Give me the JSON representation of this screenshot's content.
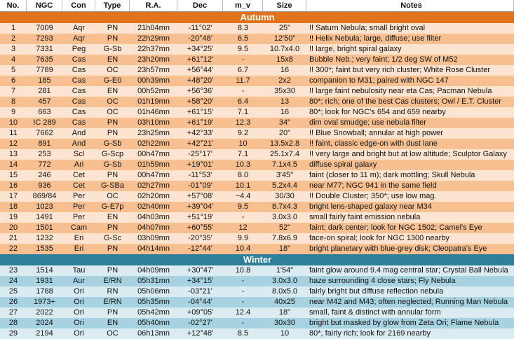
{
  "columns": [
    "No.",
    "NGC",
    "Con",
    "Type",
    "R.A.",
    "Dec",
    "m_v",
    "Size",
    "Notes"
  ],
  "colors": {
    "autumn_band": "#e2731a",
    "autumn_row_light": "#fce4d0",
    "autumn_row_dark": "#f8c090",
    "winter_band": "#2f7e9a",
    "winter_row_light": "#dbebf2",
    "winter_row_dark": "#a6d2e1"
  },
  "sections": [
    {
      "name": "Autumn",
      "rows": [
        [
          "1",
          "7009",
          "Aqr",
          "PN",
          "21h04mn",
          "-11°02'",
          "8.3",
          "25\"",
          "!! Saturn Nebula; small bright oval"
        ],
        [
          "2",
          "7293",
          "Aqr",
          "PN",
          "22h29mn",
          "-20°48'",
          "6.5",
          "12'50\"",
          "!! Helix Nebula; large, diffuse; use filter"
        ],
        [
          "3",
          "7331",
          "Peg",
          "G-Sb",
          "22h37mn",
          "+34°25'",
          "9.5",
          "10.7x4.0",
          "!! large, bright spiral galaxy"
        ],
        [
          "4",
          "7635",
          "Cas",
          "EN",
          "23h20mn",
          "+61°12'",
          "-",
          "15x8",
          "Bubble Neb.; very faint; 1/2 deg SW of M52"
        ],
        [
          "5",
          "7789",
          "Cas",
          "OC",
          "23h57mn",
          "+56°44'",
          "6.7",
          "16",
          "!! 300*; faint but very rich cluster; White Rose Cluster"
        ],
        [
          "6",
          "185",
          "Cas",
          "G-E0",
          "00h39mn",
          "+48°20'",
          "11.7",
          "2x2",
          "companion to  M31;  paired with NGC 147"
        ],
        [
          "7",
          "281",
          "Cas",
          "EN",
          "00h52mn",
          "+56°36'",
          "-",
          "35x30",
          "!! large faint nebulosity near eta Cas; Pacman Nebula"
        ],
        [
          "8",
          "457",
          "Cas",
          "OC",
          "01h19mn",
          "+58°20'",
          "6.4",
          "13",
          "80*; rich; one of the best Cas clusters; Owl / E.T. Cluster"
        ],
        [
          "9",
          "663",
          "Cas",
          "OC",
          "01h46mn",
          "+61°15'",
          "7.1",
          "16",
          "80*; look for NGC's 654 and 659 nearby"
        ],
        [
          "10",
          "IC 289",
          "Cas",
          "PN",
          "03h10mn",
          "+61°19'",
          "12.3",
          "34\"",
          "dim oval smudge; use nebula filter"
        ],
        [
          "11",
          "7662",
          "And",
          "PN",
          "23h25mn",
          "+42°33'",
          "9.2",
          "20\"",
          "!! Blue Snowball; annular at high power"
        ],
        [
          "12",
          "891",
          "And",
          "G-Sb",
          "02h22mn",
          "+42°21'",
          "10",
          "13.5x2.8",
          "!! faint, classic edge-on with dust lane"
        ],
        [
          "13",
          "253",
          "Scl",
          "G-Scp",
          "00h47mn",
          "-25°17'",
          "7.1",
          "25.1x7.4",
          "!! very large and bright but at low altitude; Sculptor Galaxy"
        ],
        [
          "14",
          "772",
          "Ari",
          "G-Sb",
          "01h59mn",
          "+19°01'",
          "10.3",
          "7.1x4.5",
          "diffuse spiral galaxy"
        ],
        [
          "15",
          "246",
          "Cet",
          "PN",
          "00h47mn",
          "-11°53'",
          "8.0",
          "3'45\"",
          "faint (closer to 11 m); dark mottling; Skull Nebula"
        ],
        [
          "16",
          "936",
          "Cet",
          "G-SBa",
          "02h27mn",
          "-01°09'",
          "10.1",
          "5.2x4.4",
          "near M77; NGC 941 in the same field"
        ],
        [
          "17",
          "869/84",
          "Per",
          "OC",
          "02h20mn",
          "+57°08'",
          "~4.4",
          "30/30",
          "!! Double Cluster; 350*; use low mag."
        ],
        [
          "18",
          "1023",
          "Per",
          "G-E7p",
          "02h40mn",
          "+39°04'",
          "9.5",
          "8.7x4.3",
          "bright lens-shaped galaxy near M34"
        ],
        [
          "19",
          "1491",
          "Per",
          "EN",
          "04h03mn",
          "+51°19'",
          "-",
          "3.0x3.0",
          "small fairly faint emission nebula"
        ],
        [
          "20",
          "1501",
          "Cam",
          "PN",
          "04h07mn",
          "+60°55'",
          "12",
          "52\"",
          "faint; dark center; look for NGC 1502; Camel's Eye"
        ],
        [
          "21",
          "1232",
          "Eri",
          "G-Sc",
          "03h09mn",
          "-20°35'",
          "9.9",
          "7.8x6.9",
          "face-on spiral; look for NGC 1300 nearby"
        ],
        [
          "22",
          "1535",
          "Eri",
          "PN",
          "04h14mn",
          "-12°44'",
          "10.4",
          "18\"",
          "bright planetary with blue-grey disk; Cleopatra's Eye"
        ]
      ]
    },
    {
      "name": "Winter",
      "rows": [
        [
          "23",
          "1514",
          "Tau",
          "PN",
          "04h09mn",
          "+30°47'",
          "10.8",
          "1'54\"",
          "faint glow around 9.4 mag central star; Crystal Ball Nebula"
        ],
        [
          "24",
          "1931",
          "Aur",
          "E/RN",
          "05h31mn",
          "+34°15'",
          "-",
          "3.0x3.0",
          "haze surrounding 4 close stars; Fly Nebula"
        ],
        [
          "25",
          "1788",
          "Ori",
          "RN",
          "05h06mn",
          "-03°21'",
          "-",
          "8.0x5.0",
          "fairly bright but diffuse reflection nebula"
        ],
        [
          "26",
          "1973+",
          "Ori",
          "E/RN",
          "05h35mn",
          "-04°44'",
          "-",
          "40x25",
          "near M42 and M43; often neglected; Running Man Nebula"
        ],
        [
          "27",
          "2022",
          "Ori",
          "PN",
          "05h42mn",
          "+09°05'",
          "12.4",
          "18\"",
          "small, faint & distinct with annular form"
        ],
        [
          "28",
          "2024",
          "Ori",
          "EN",
          "05h40mn",
          "-02°27'",
          "-",
          "30x30",
          "bright but masked by glow from Zeta Ori; Flame Nebula"
        ],
        [
          "29",
          "2194",
          "Ori",
          "OC",
          "06h13mn",
          "+12°48'",
          "8.5",
          "10",
          "80*, fairly rich; look for 2169 nearby"
        ]
      ]
    }
  ]
}
